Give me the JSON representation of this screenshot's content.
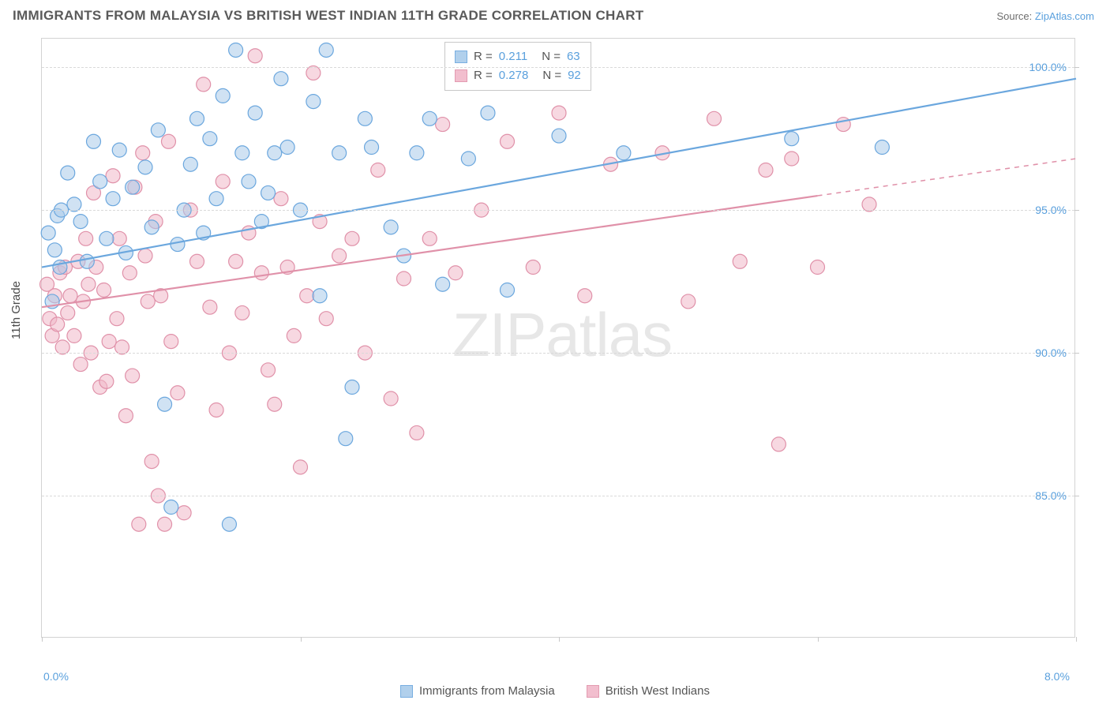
{
  "header": {
    "title": "IMMIGRANTS FROM MALAYSIA VS BRITISH WEST INDIAN 11TH GRADE CORRELATION CHART",
    "source_prefix": "Source: ",
    "source_link": "ZipAtlas.com"
  },
  "axes": {
    "ylabel": "11th Grade",
    "xlim": [
      0,
      8
    ],
    "ylim": [
      80,
      101
    ],
    "xticks": [
      0,
      2,
      4,
      6,
      8
    ],
    "xtick_labels": [
      "0.0%",
      "",
      "",
      "",
      "8.0%"
    ],
    "yticks": [
      85,
      90,
      95,
      100
    ],
    "ytick_labels": [
      "85.0%",
      "90.0%",
      "95.0%",
      "100.0%"
    ]
  },
  "watermark": {
    "text_prefix": "ZIP",
    "text_suffix": "atlas",
    "color": "#bdbdbd",
    "opacity": 0.35
  },
  "series": [
    {
      "name": "Immigrants from Malaysia",
      "color": "#6ba7de",
      "fill": "#a9cbea",
      "fill_opacity": 0.55,
      "r_value": "0.211",
      "n_value": "63",
      "trend": {
        "x1": 0,
        "y1": 93.0,
        "x2": 8,
        "y2": 99.6,
        "solid_until": 8
      },
      "points": [
        [
          0.05,
          94.2
        ],
        [
          0.08,
          91.8
        ],
        [
          0.1,
          93.6
        ],
        [
          0.12,
          94.8
        ],
        [
          0.14,
          93.0
        ],
        [
          0.15,
          95.0
        ],
        [
          0.2,
          96.3
        ],
        [
          0.25,
          95.2
        ],
        [
          0.3,
          94.6
        ],
        [
          0.35,
          93.2
        ],
        [
          0.4,
          97.4
        ],
        [
          0.45,
          96.0
        ],
        [
          0.5,
          94.0
        ],
        [
          0.55,
          95.4
        ],
        [
          0.6,
          97.1
        ],
        [
          0.65,
          93.5
        ],
        [
          0.7,
          95.8
        ],
        [
          0.8,
          96.5
        ],
        [
          0.85,
          94.4
        ],
        [
          0.9,
          97.8
        ],
        [
          0.95,
          88.2
        ],
        [
          1.0,
          84.6
        ],
        [
          1.05,
          93.8
        ],
        [
          1.1,
          95.0
        ],
        [
          1.15,
          96.6
        ],
        [
          1.2,
          98.2
        ],
        [
          1.25,
          94.2
        ],
        [
          1.3,
          97.5
        ],
        [
          1.35,
          95.4
        ],
        [
          1.4,
          99.0
        ],
        [
          1.45,
          84.0
        ],
        [
          1.5,
          100.6
        ],
        [
          1.55,
          97.0
        ],
        [
          1.6,
          96.0
        ],
        [
          1.65,
          98.4
        ],
        [
          1.7,
          94.6
        ],
        [
          1.75,
          95.6
        ],
        [
          1.8,
          97.0
        ],
        [
          1.85,
          99.6
        ],
        [
          1.9,
          97.2
        ],
        [
          2.0,
          95.0
        ],
        [
          2.1,
          98.8
        ],
        [
          2.15,
          92.0
        ],
        [
          2.2,
          100.6
        ],
        [
          2.3,
          97.0
        ],
        [
          2.35,
          87.0
        ],
        [
          2.4,
          88.8
        ],
        [
          2.5,
          98.2
        ],
        [
          2.55,
          97.2
        ],
        [
          2.7,
          94.4
        ],
        [
          2.8,
          93.4
        ],
        [
          2.9,
          97.0
        ],
        [
          3.0,
          98.2
        ],
        [
          3.1,
          92.4
        ],
        [
          3.3,
          96.8
        ],
        [
          3.45,
          98.4
        ],
        [
          3.6,
          92.2
        ],
        [
          4.0,
          97.6
        ],
        [
          4.5,
          97.0
        ],
        [
          5.8,
          97.5
        ],
        [
          6.5,
          97.2
        ]
      ]
    },
    {
      "name": "British West Indians",
      "color": "#e091a9",
      "fill": "#f1b8c9",
      "fill_opacity": 0.55,
      "r_value": "0.278",
      "n_value": "92",
      "trend": {
        "x1": 0,
        "y1": 91.6,
        "x2": 8,
        "y2": 96.8,
        "solid_until": 6.0
      },
      "points": [
        [
          0.04,
          92.4
        ],
        [
          0.06,
          91.2
        ],
        [
          0.08,
          90.6
        ],
        [
          0.1,
          92.0
        ],
        [
          0.12,
          91.0
        ],
        [
          0.14,
          92.8
        ],
        [
          0.16,
          90.2
        ],
        [
          0.18,
          93.0
        ],
        [
          0.2,
          91.4
        ],
        [
          0.22,
          92.0
        ],
        [
          0.25,
          90.6
        ],
        [
          0.28,
          93.2
        ],
        [
          0.3,
          89.6
        ],
        [
          0.32,
          91.8
        ],
        [
          0.34,
          94.0
        ],
        [
          0.36,
          92.4
        ],
        [
          0.38,
          90.0
        ],
        [
          0.4,
          95.6
        ],
        [
          0.42,
          93.0
        ],
        [
          0.45,
          88.8
        ],
        [
          0.48,
          92.2
        ],
        [
          0.5,
          89.0
        ],
        [
          0.52,
          90.4
        ],
        [
          0.55,
          96.2
        ],
        [
          0.58,
          91.2
        ],
        [
          0.6,
          94.0
        ],
        [
          0.62,
          90.2
        ],
        [
          0.65,
          87.8
        ],
        [
          0.68,
          92.8
        ],
        [
          0.7,
          89.2
        ],
        [
          0.72,
          95.8
        ],
        [
          0.75,
          84.0
        ],
        [
          0.78,
          97.0
        ],
        [
          0.8,
          93.4
        ],
        [
          0.82,
          91.8
        ],
        [
          0.85,
          86.2
        ],
        [
          0.88,
          94.6
        ],
        [
          0.9,
          85.0
        ],
        [
          0.92,
          92.0
        ],
        [
          0.95,
          84.0
        ],
        [
          0.98,
          97.4
        ],
        [
          1.0,
          90.4
        ],
        [
          1.05,
          88.6
        ],
        [
          1.1,
          84.4
        ],
        [
          1.15,
          95.0
        ],
        [
          1.2,
          93.2
        ],
        [
          1.25,
          99.4
        ],
        [
          1.3,
          91.6
        ],
        [
          1.35,
          88.0
        ],
        [
          1.4,
          96.0
        ],
        [
          1.45,
          90.0
        ],
        [
          1.5,
          93.2
        ],
        [
          1.55,
          91.4
        ],
        [
          1.6,
          94.2
        ],
        [
          1.65,
          100.4
        ],
        [
          1.7,
          92.8
        ],
        [
          1.75,
          89.4
        ],
        [
          1.8,
          88.2
        ],
        [
          1.85,
          95.4
        ],
        [
          1.9,
          93.0
        ],
        [
          1.95,
          90.6
        ],
        [
          2.0,
          86.0
        ],
        [
          2.05,
          92.0
        ],
        [
          2.1,
          99.8
        ],
        [
          2.15,
          94.6
        ],
        [
          2.2,
          91.2
        ],
        [
          2.3,
          93.4
        ],
        [
          2.4,
          94.0
        ],
        [
          2.5,
          90.0
        ],
        [
          2.6,
          96.4
        ],
        [
          2.7,
          88.4
        ],
        [
          2.8,
          92.6
        ],
        [
          2.9,
          87.2
        ],
        [
          3.0,
          94.0
        ],
        [
          3.1,
          98.0
        ],
        [
          3.2,
          92.8
        ],
        [
          3.4,
          95.0
        ],
        [
          3.6,
          97.4
        ],
        [
          3.8,
          93.0
        ],
        [
          4.0,
          98.4
        ],
        [
          4.2,
          92.0
        ],
        [
          4.4,
          96.6
        ],
        [
          4.8,
          97.0
        ],
        [
          5.0,
          91.8
        ],
        [
          5.2,
          98.2
        ],
        [
          5.4,
          93.2
        ],
        [
          5.6,
          96.4
        ],
        [
          5.7,
          86.8
        ],
        [
          5.8,
          96.8
        ],
        [
          6.0,
          93.0
        ],
        [
          6.2,
          98.0
        ],
        [
          6.4,
          95.2
        ]
      ]
    }
  ],
  "legend_labels": {
    "r_prefix": "R  =",
    "n_prefix": "N  ="
  },
  "styling": {
    "marker_radius": 9,
    "marker_stroke_width": 1.2,
    "trend_line_width": 2.2,
    "grid_color": "#d9d9d9",
    "axis_color": "#d3d3d3",
    "tick_color": "#c8c8c8",
    "background": "#ffffff"
  }
}
